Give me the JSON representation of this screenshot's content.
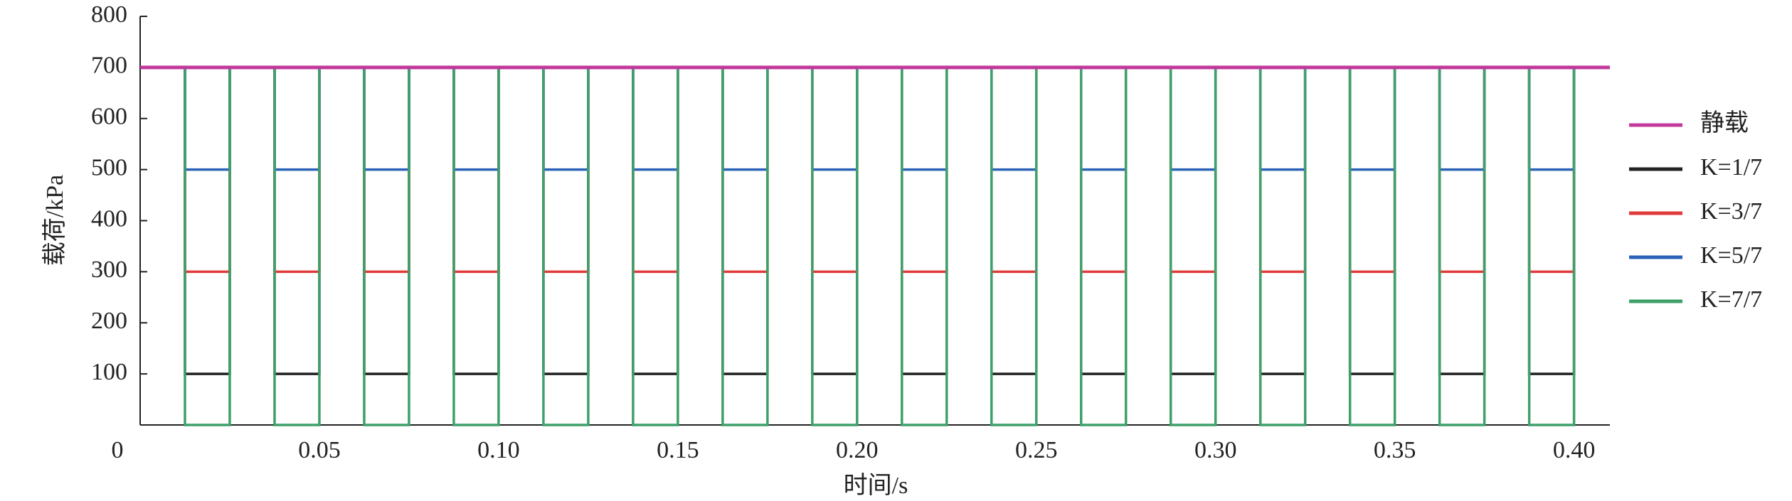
{
  "chart_data": {
    "type": "line",
    "x_label": "时间/s",
    "y_label": "载荷/kPa",
    "xlim": [
      0,
      0.41
    ],
    "ylim": [
      0,
      800
    ],
    "xticks": [
      0,
      0.05,
      {
        "value": 0.1,
        "label": "0.10"
      },
      0.15,
      {
        "value": 0.2,
        "label": "0.20"
      },
      0.25,
      {
        "value": 0.3,
        "label": "0.30"
      },
      0.35,
      {
        "value": 0.4,
        "label": "0.40"
      }
    ],
    "yticks": [
      100,
      200,
      300,
      400,
      500,
      600,
      700,
      800
    ],
    "legend": "right",
    "x": [
      0,
      0.0125,
      0.0125,
      0.025,
      0.025,
      0.0375,
      0.0375,
      0.05,
      0.05,
      0.0625,
      0.0625,
      0.075,
      0.075,
      0.0875,
      0.0875,
      0.1,
      0.1,
      0.1125,
      0.1125,
      0.125,
      0.125,
      0.1375,
      0.1375,
      0.15,
      0.15,
      0.1625,
      0.1625,
      0.175,
      0.175,
      0.1875,
      0.1875,
      0.2,
      0.2,
      0.2125,
      0.2125,
      0.225,
      0.225,
      0.2375,
      0.2375,
      0.25,
      0.25,
      0.2625,
      0.2625,
      0.275,
      0.275,
      0.2875,
      0.2875,
      0.3,
      0.3,
      0.3125,
      0.3125,
      0.325,
      0.325,
      0.3375,
      0.3375,
      0.35,
      0.35,
      0.3625,
      0.3625,
      0.375,
      0.375,
      0.3875,
      0.3875,
      0.4,
      0.4,
      0.41
    ],
    "series": [
      {
        "name": "静载",
        "color": "#c2399b",
        "values": [
          700,
          700,
          700,
          700,
          700,
          700,
          700,
          700,
          700,
          700,
          700,
          700,
          700,
          700,
          700,
          700,
          700,
          700,
          700,
          700,
          700,
          700,
          700,
          700,
          700,
          700,
          700,
          700,
          700,
          700,
          700,
          700,
          700,
          700,
          700,
          700,
          700,
          700,
          700,
          700,
          700,
          700,
          700,
          700,
          700,
          700,
          700,
          700,
          700,
          700,
          700,
          700,
          700,
          700,
          700,
          700,
          700,
          700,
          700,
          700,
          700,
          700,
          700,
          700,
          700,
          700
        ]
      },
      {
        "name": "K=1/7",
        "color": "#222222",
        "values": [
          700,
          700,
          100,
          100,
          700,
          700,
          100,
          100,
          700,
          700,
          100,
          100,
          700,
          700,
          100,
          100,
          700,
          700,
          100,
          100,
          700,
          700,
          100,
          100,
          700,
          700,
          100,
          100,
          700,
          700,
          100,
          100,
          700,
          700,
          100,
          100,
          700,
          700,
          100,
          100,
          700,
          700,
          100,
          100,
          700,
          700,
          100,
          100,
          700,
          700,
          100,
          100,
          700,
          700,
          100,
          100,
          700,
          700,
          100,
          100,
          700,
          700,
          100,
          100,
          700,
          700
        ]
      },
      {
        "name": "K=3/7",
        "color": "#e03a3a",
        "values": [
          700,
          700,
          300,
          300,
          700,
          700,
          300,
          300,
          700,
          700,
          300,
          300,
          700,
          700,
          300,
          300,
          700,
          700,
          300,
          300,
          700,
          700,
          300,
          300,
          700,
          700,
          300,
          300,
          700,
          700,
          300,
          300,
          700,
          700,
          300,
          300,
          700,
          700,
          300,
          300,
          700,
          700,
          300,
          300,
          700,
          700,
          300,
          300,
          700,
          700,
          300,
          300,
          700,
          700,
          300,
          300,
          700,
          700,
          300,
          300,
          700,
          700,
          300,
          300,
          700,
          700
        ]
      },
      {
        "name": "K=5/7",
        "color": "#2a62b8",
        "values": [
          700,
          700,
          500,
          500,
          700,
          700,
          500,
          500,
          700,
          700,
          500,
          500,
          700,
          700,
          500,
          500,
          700,
          700,
          500,
          500,
          700,
          700,
          500,
          500,
          700,
          700,
          500,
          500,
          700,
          700,
          500,
          500,
          700,
          700,
          500,
          500,
          700,
          700,
          500,
          500,
          700,
          700,
          500,
          500,
          700,
          700,
          500,
          500,
          700,
          700,
          500,
          500,
          700,
          700,
          500,
          500,
          700,
          700,
          500,
          500,
          700,
          700,
          500,
          500,
          700,
          700
        ]
      },
      {
        "name": "K=7/7",
        "color": "#3fa06a",
        "values": [
          700,
          700,
          0,
          0,
          700,
          700,
          0,
          0,
          700,
          700,
          0,
          0,
          700,
          700,
          0,
          0,
          700,
          700,
          0,
          0,
          700,
          700,
          0,
          0,
          700,
          700,
          0,
          0,
          700,
          700,
          0,
          0,
          700,
          700,
          0,
          0,
          700,
          700,
          0,
          0,
          700,
          700,
          0,
          0,
          700,
          700,
          0,
          0,
          700,
          700,
          0,
          0,
          700,
          700,
          0,
          0,
          700,
          700,
          0,
          0,
          700,
          700,
          0,
          0,
          700,
          700
        ]
      }
    ]
  }
}
